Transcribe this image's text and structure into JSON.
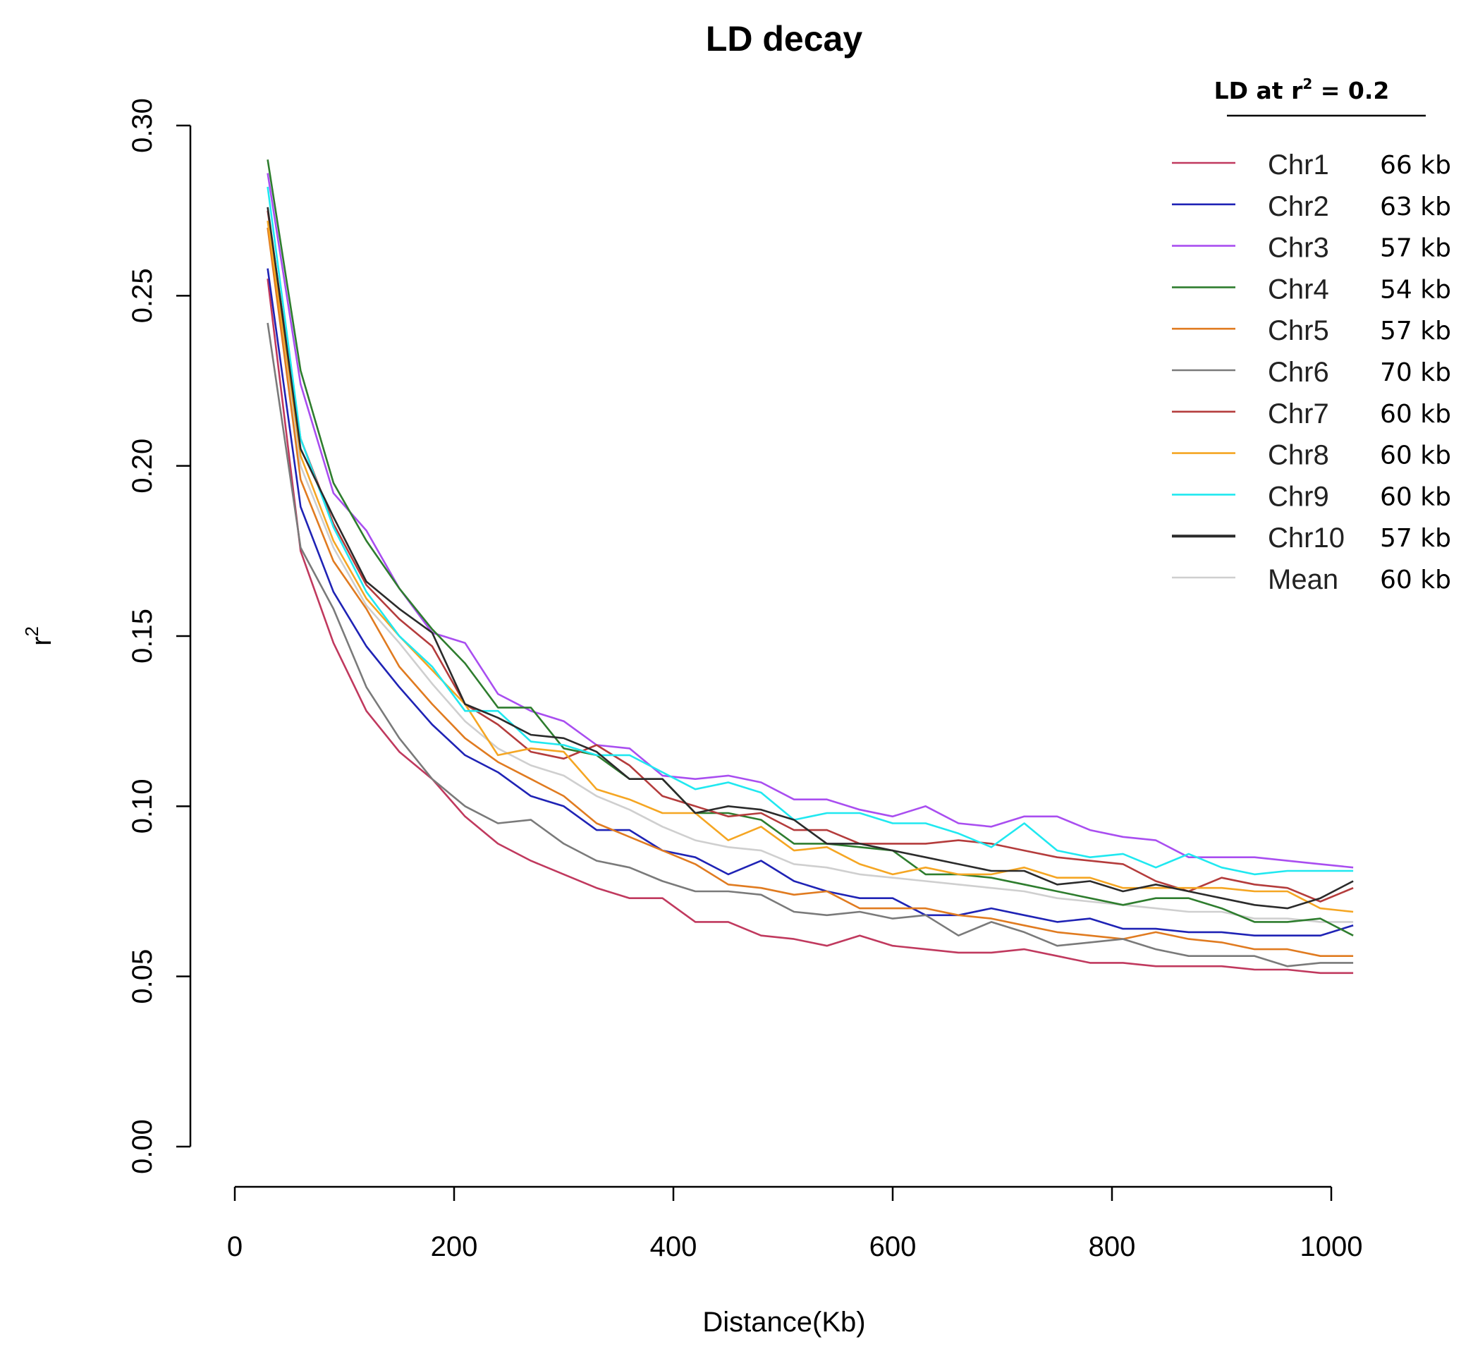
{
  "chart_data": {
    "type": "line",
    "title": "LD decay",
    "xlabel": "Distance(Kb)",
    "ylabel": "r",
    "ylabel_superscript": "2",
    "xlim": [
      0,
      1000
    ],
    "ylim": [
      0,
      0.3
    ],
    "xticks": [
      0,
      200,
      400,
      600,
      800,
      1000
    ],
    "yticks": [
      0.0,
      0.05,
      0.1,
      0.15,
      0.2,
      0.25,
      0.3
    ],
    "ytick_labels": [
      "0.00",
      "0.05",
      "0.10",
      "0.15",
      "0.20",
      "0.25",
      "0.30"
    ],
    "grid": false,
    "legend_placement": "top-right",
    "legend_header": {
      "prefix": "LD at r",
      "superscript": "2",
      "suffix": " = 0.2"
    },
    "x": [
      30,
      60,
      90,
      120,
      150,
      180,
      210,
      240,
      270,
      300,
      330,
      360,
      390,
      420,
      450,
      480,
      510,
      540,
      570,
      600,
      630,
      660,
      690,
      720,
      750,
      780,
      810,
      840,
      870,
      900,
      930,
      960,
      990,
      1020
    ],
    "series": [
      {
        "name": "Chr1",
        "ld": "66 kb",
        "color": "#c0395e",
        "values": [
          0.255,
          0.175,
          0.148,
          0.128,
          0.116,
          0.108,
          0.097,
          0.089,
          0.084,
          0.08,
          0.076,
          0.073,
          0.073,
          0.066,
          0.066,
          0.062,
          0.061,
          0.059,
          0.062,
          0.059,
          0.058,
          0.057,
          0.057,
          0.058,
          0.056,
          0.054,
          0.054,
          0.053,
          0.053,
          0.053,
          0.052,
          0.052,
          0.051,
          0.051
        ]
      },
      {
        "name": "Chr2",
        "ld": "63 kb",
        "color": "#1f23b5",
        "values": [
          0.258,
          0.188,
          0.163,
          0.147,
          0.135,
          0.124,
          0.115,
          0.11,
          0.103,
          0.1,
          0.093,
          0.093,
          0.087,
          0.085,
          0.08,
          0.084,
          0.078,
          0.075,
          0.073,
          0.073,
          0.068,
          0.068,
          0.07,
          0.068,
          0.066,
          0.067,
          0.064,
          0.064,
          0.063,
          0.063,
          0.062,
          0.062,
          0.062,
          0.065
        ]
      },
      {
        "name": "Chr3",
        "ld": "57 kb",
        "color": "#a94ef0",
        "values": [
          0.286,
          0.224,
          0.192,
          0.181,
          0.164,
          0.151,
          0.148,
          0.133,
          0.128,
          0.125,
          0.118,
          0.117,
          0.109,
          0.108,
          0.109,
          0.107,
          0.102,
          0.102,
          0.099,
          0.097,
          0.1,
          0.095,
          0.094,
          0.097,
          0.097,
          0.093,
          0.091,
          0.09,
          0.085,
          0.085,
          0.085,
          0.084,
          0.083,
          0.082
        ]
      },
      {
        "name": "Chr4",
        "ld": "54 kb",
        "color": "#2e7d2e",
        "values": [
          0.29,
          0.228,
          0.195,
          0.178,
          0.164,
          0.152,
          0.142,
          0.129,
          0.129,
          0.117,
          0.115,
          0.108,
          0.108,
          0.098,
          0.098,
          0.096,
          0.089,
          0.089,
          0.088,
          0.087,
          0.08,
          0.08,
          0.079,
          0.077,
          0.075,
          0.073,
          0.071,
          0.073,
          0.073,
          0.07,
          0.066,
          0.066,
          0.067,
          0.062
        ]
      },
      {
        "name": "Chr5",
        "ld": "57 kb",
        "color": "#e07b20",
        "values": [
          0.27,
          0.196,
          0.172,
          0.158,
          0.141,
          0.13,
          0.12,
          0.113,
          0.108,
          0.103,
          0.095,
          0.091,
          0.087,
          0.083,
          0.077,
          0.076,
          0.074,
          0.075,
          0.07,
          0.07,
          0.07,
          0.068,
          0.067,
          0.065,
          0.063,
          0.062,
          0.061,
          0.063,
          0.061,
          0.06,
          0.058,
          0.058,
          0.056,
          0.056
        ]
      },
      {
        "name": "Chr6",
        "ld": "70 kb",
        "color": "#7a7a7a",
        "values": [
          0.242,
          0.176,
          0.158,
          0.135,
          0.12,
          0.108,
          0.1,
          0.095,
          0.096,
          0.089,
          0.084,
          0.082,
          0.078,
          0.075,
          0.075,
          0.074,
          0.069,
          0.068,
          0.069,
          0.067,
          0.068,
          0.062,
          0.066,
          0.063,
          0.059,
          0.06,
          0.061,
          0.058,
          0.056,
          0.056,
          0.056,
          0.053,
          0.054,
          0.054
        ]
      },
      {
        "name": "Chr7",
        "ld": "60 kb",
        "color": "#b43c3c",
        "values": [
          0.275,
          0.208,
          0.183,
          0.165,
          0.155,
          0.147,
          0.13,
          0.124,
          0.116,
          0.114,
          0.118,
          0.112,
          0.103,
          0.1,
          0.097,
          0.098,
          0.093,
          0.093,
          0.089,
          0.089,
          0.089,
          0.09,
          0.089,
          0.087,
          0.085,
          0.084,
          0.083,
          0.078,
          0.075,
          0.079,
          0.077,
          0.076,
          0.072,
          0.076
        ]
      },
      {
        "name": "Chr8",
        "ld": "60 kb",
        "color": "#f5a623",
        "values": [
          0.272,
          0.203,
          0.178,
          0.161,
          0.15,
          0.14,
          0.13,
          0.115,
          0.117,
          0.116,
          0.105,
          0.102,
          0.098,
          0.098,
          0.09,
          0.094,
          0.087,
          0.088,
          0.083,
          0.08,
          0.082,
          0.08,
          0.08,
          0.082,
          0.079,
          0.079,
          0.076,
          0.076,
          0.076,
          0.076,
          0.075,
          0.075,
          0.07,
          0.069
        ]
      },
      {
        "name": "Chr9",
        "ld": "60 kb",
        "color": "#20e8f0",
        "values": [
          0.282,
          0.208,
          0.182,
          0.163,
          0.15,
          0.141,
          0.128,
          0.128,
          0.119,
          0.118,
          0.115,
          0.115,
          0.11,
          0.105,
          0.107,
          0.104,
          0.096,
          0.098,
          0.098,
          0.095,
          0.095,
          0.092,
          0.088,
          0.095,
          0.087,
          0.085,
          0.086,
          0.082,
          0.086,
          0.082,
          0.08,
          0.081,
          0.081,
          0.081
        ]
      },
      {
        "name": "Chr10",
        "ld": "57 kb",
        "color": "#2b2b2b",
        "values": [
          0.276,
          0.205,
          0.185,
          0.166,
          0.158,
          0.151,
          0.13,
          0.126,
          0.121,
          0.12,
          0.116,
          0.108,
          0.108,
          0.098,
          0.1,
          0.099,
          0.096,
          0.089,
          0.089,
          0.087,
          0.085,
          0.083,
          0.081,
          0.081,
          0.077,
          0.078,
          0.075,
          0.077,
          0.075,
          0.073,
          0.071,
          0.07,
          0.073,
          0.078
        ]
      },
      {
        "name": "Mean",
        "ld": "60 kb",
        "color": "#cfcfcf",
        "values": [
          0.272,
          0.2,
          0.176,
          0.159,
          0.148,
          0.136,
          0.125,
          0.117,
          0.112,
          0.109,
          0.103,
          0.099,
          0.094,
          0.09,
          0.088,
          0.087,
          0.083,
          0.082,
          0.08,
          0.079,
          0.078,
          0.077,
          0.076,
          0.075,
          0.073,
          0.072,
          0.071,
          0.07,
          0.069,
          0.069,
          0.067,
          0.067,
          0.066,
          0.066
        ]
      }
    ]
  }
}
